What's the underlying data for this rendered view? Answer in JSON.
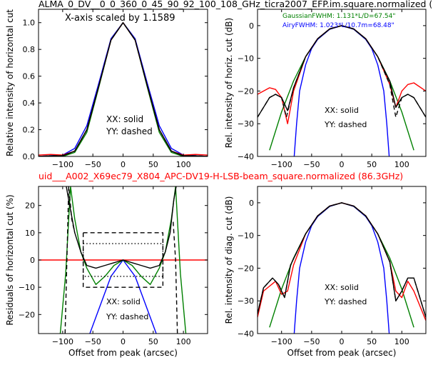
{
  "figure": {
    "title_top": "ALMA_0_DV__0_0_360_0_45_90_92_100_108_GHz_ticra2007_EFP.im.square.normalized (",
    "title_mid": "uid___A002_X69ec79_X804_APC-DV19-H-LSB-beam_square.normalized (86.3GHz)",
    "colors": {
      "black": "#000000",
      "red": "#ff0000",
      "green": "#008000",
      "blue": "#0000ff",
      "mid_title": "#ff0000"
    }
  },
  "chart_data": [
    {
      "id": "tl",
      "type": "line",
      "title": "",
      "xlabel": "",
      "ylabel": "Relative intensity of horizontal cut",
      "xlim": [
        -140,
        140
      ],
      "ylim": [
        0,
        1.1
      ],
      "xticks": [
        -100,
        -50,
        0,
        50,
        100
      ],
      "yticks": [
        0.0,
        0.2,
        0.4,
        0.6,
        0.8,
        1.0
      ],
      "ytick_labels": [
        "0.0",
        "0.2",
        "0.4",
        "0.6",
        "0.8",
        "1.0"
      ],
      "annotations": [
        "X-axis scaled by 1.1589",
        "XX: solid",
        "YY: dashed"
      ],
      "series": [
        {
          "color": "#0000ff",
          "style": "solid",
          "x": [
            -140,
            -100,
            -80,
            -60,
            -40,
            -20,
            0,
            20,
            40,
            60,
            80,
            100,
            140
          ],
          "y": [
            0,
            0.01,
            0.06,
            0.23,
            0.55,
            0.88,
            1.0,
            0.88,
            0.55,
            0.23,
            0.06,
            0.01,
            0
          ]
        },
        {
          "color": "#008000",
          "style": "solid",
          "x": [
            -140,
            -100,
            -80,
            -60,
            -40,
            -20,
            0,
            20,
            40,
            60,
            80,
            100,
            140
          ],
          "y": [
            0,
            0,
            0.03,
            0.18,
            0.52,
            0.87,
            1.0,
            0.87,
            0.52,
            0.18,
            0.03,
            0,
            0
          ]
        },
        {
          "color": "#ff0000",
          "style": "solid",
          "x": [
            -140,
            -120,
            -100,
            -80,
            -60,
            -40,
            -20,
            0,
            20,
            40,
            60,
            80,
            100,
            120,
            140
          ],
          "y": [
            0.01,
            0.015,
            0.01,
            0.04,
            0.2,
            0.53,
            0.87,
            1.0,
            0.87,
            0.53,
            0.2,
            0.04,
            0.01,
            0.015,
            0.01
          ]
        },
        {
          "color": "#000000",
          "style": "solid",
          "x": [
            -140,
            -120,
            -100,
            -80,
            -60,
            -40,
            -20,
            0,
            20,
            40,
            60,
            80,
            100,
            120,
            140
          ],
          "y": [
            0,
            0.005,
            0.005,
            0.04,
            0.2,
            0.53,
            0.87,
            1.0,
            0.87,
            0.53,
            0.2,
            0.04,
            0.005,
            0.005,
            0
          ]
        },
        {
          "color": "#000000",
          "style": "dashed",
          "x": [
            -140,
            -120,
            -100,
            -80,
            -60,
            -40,
            -20,
            0,
            20,
            40,
            60,
            80,
            100,
            120,
            140
          ],
          "y": [
            0,
            0.005,
            0.005,
            0.04,
            0.2,
            0.53,
            0.87,
            1.0,
            0.87,
            0.53,
            0.2,
            0.04,
            0.005,
            0.005,
            0
          ]
        }
      ]
    },
    {
      "id": "tr",
      "type": "line",
      "title": "",
      "xlabel": "",
      "ylabel": "Rel. intensity of horiz. cut (dB)",
      "xlim": [
        -140,
        140
      ],
      "ylim": [
        -40,
        5
      ],
      "xticks": [
        -100,
        -50,
        0,
        50,
        100
      ],
      "yticks": [
        0,
        -10,
        -20,
        -30,
        -40
      ],
      "annotations": [
        "GaussianFWHM: 1.131*L/D=67.54\"",
        "AiryFWHM: 1.023*L/10.7m=68.48\"",
        "XX: solid",
        "YY: dashed"
      ],
      "series": [
        {
          "color": "#008000",
          "style": "solid",
          "x": [
            -120,
            -100,
            -80,
            -60,
            -40,
            -20,
            0,
            20,
            40,
            60,
            80,
            100,
            120
          ],
          "y": [
            -38.1,
            -26.4,
            -16.9,
            -9.5,
            -4.2,
            -1.1,
            0,
            -1.1,
            -4.2,
            -9.5,
            -16.9,
            -26.4,
            -38.1
          ]
        },
        {
          "color": "#0000ff",
          "style": "solid",
          "x": [
            -79,
            -75,
            -70,
            -60,
            -50,
            -40,
            -20,
            0,
            20,
            40,
            50,
            60,
            70,
            75,
            79
          ],
          "y": [
            -40,
            -30,
            -20,
            -12,
            -7,
            -4.2,
            -1.1,
            0,
            -1.1,
            -4.2,
            -7,
            -12,
            -20,
            -30,
            -40
          ]
        },
        {
          "color": "#ff0000",
          "style": "solid",
          "x": [
            -140,
            -120,
            -110,
            -100,
            -90,
            -80,
            -60,
            -40,
            -20,
            0,
            20,
            40,
            60,
            80,
            90,
            100,
            110,
            120,
            140
          ],
          "y": [
            -21,
            -19,
            -19.5,
            -22,
            -30,
            -20,
            -9.5,
            -4,
            -1,
            0,
            -1,
            -4,
            -9.5,
            -18,
            -25,
            -20,
            -18,
            -17.5,
            -20
          ]
        },
        {
          "color": "#000000",
          "style": "solid",
          "x": [
            -140,
            -120,
            -110,
            -100,
            -90,
            -80,
            -60,
            -40,
            -20,
            0,
            20,
            40,
            60,
            80,
            90,
            100,
            110,
            120,
            140
          ],
          "y": [
            -28,
            -22,
            -21,
            -22,
            -26,
            -19,
            -9.5,
            -4,
            -1,
            0,
            -1,
            -4,
            -9.5,
            -17,
            -25,
            -22,
            -21,
            -22,
            -28
          ]
        },
        {
          "color": "#000000",
          "style": "dashed",
          "x": [
            -140,
            -120,
            -110,
            -100,
            -92,
            -80,
            -60,
            -40,
            -20,
            0,
            20,
            40,
            60,
            80,
            90,
            95,
            100,
            110,
            120,
            140
          ],
          "y": [
            -28,
            -22,
            -21,
            -22,
            -28,
            -19,
            -9.5,
            -4,
            -1,
            0,
            -1,
            -4,
            -9.5,
            -18,
            -28,
            -25,
            -22,
            -21,
            -22,
            -28
          ]
        }
      ]
    },
    {
      "id": "bl",
      "type": "line",
      "title": "",
      "xlabel": "Offset from peak (arcsec)",
      "ylabel": "Residuals of horizontal cut (%)",
      "xlim": [
        -140,
        140
      ],
      "ylim": [
        -27,
        27
      ],
      "xticks": [
        -100,
        -50,
        0,
        50,
        100
      ],
      "yticks": [
        20,
        10,
        0,
        -10,
        -20
      ],
      "annotations": [
        "XX: solid",
        "YY: dashed"
      ],
      "series": [
        {
          "color": "#ff0000",
          "style": "solid",
          "x": [
            -140,
            140
          ],
          "y": [
            0,
            0
          ]
        },
        {
          "color": "#0000ff",
          "style": "solid",
          "x": [
            -55,
            -40,
            -20,
            0,
            20,
            40,
            55
          ],
          "y": [
            -27,
            -18,
            -6,
            0,
            -6,
            -18,
            -27
          ]
        },
        {
          "color": "#008000",
          "style": "solid",
          "x": [
            -104,
            -95,
            -87,
            -80,
            -70,
            -60,
            -45,
            -30,
            -15,
            0,
            15,
            30,
            45,
            60,
            70,
            80,
            87,
            95,
            104
          ],
          "y": [
            -27,
            -5,
            27,
            15,
            3,
            -3,
            -9,
            -6,
            -2,
            0,
            -2,
            -6,
            -9,
            -3,
            3,
            15,
            27,
            -5,
            -27
          ]
        },
        {
          "color": "#000000",
          "style": "solid",
          "x": [
            -94,
            -90,
            -80,
            -70,
            -60,
            -45,
            -30,
            -15,
            0,
            15,
            30,
            45,
            60,
            70,
            78,
            84,
            88
          ],
          "y": [
            27,
            22,
            10,
            3,
            -2,
            -3,
            -2,
            -1,
            0,
            -1,
            -2,
            -3,
            -2,
            3,
            10,
            22,
            27
          ]
        },
        {
          "color": "#000000",
          "style": "dashed",
          "x": [
            -96,
            -93,
            -90,
            -85,
            -80
          ],
          "y": [
            -27,
            0,
            27,
            15,
            10
          ]
        },
        {
          "color": "#000000",
          "style": "dashed",
          "x": [
            -66,
            66,
            66,
            -66,
            -66
          ],
          "y": [
            10,
            10,
            -10,
            -10,
            10
          ]
        },
        {
          "color": "#000000",
          "style": "dotted",
          "x": [
            -66,
            66,
            66,
            -66,
            -66
          ],
          "y": [
            6,
            6,
            -6,
            -6,
            6
          ]
        },
        {
          "color": "#000000",
          "style": "dashed",
          "x": [
            83,
            87,
            90
          ],
          "y": [
            14,
            0,
            -27
          ]
        }
      ]
    },
    {
      "id": "br",
      "type": "line",
      "title": "",
      "xlabel": "Offset from peak (arcsec)",
      "ylabel": "Rel. intensity of diag. cut (dB)",
      "xlim": [
        -140,
        140
      ],
      "ylim": [
        -40,
        5
      ],
      "xticks": [
        -100,
        -50,
        0,
        50,
        100
      ],
      "yticks": [
        0,
        -10,
        -20,
        -30,
        -40
      ],
      "annotations": [
        "XX: solid",
        "YY: dashed"
      ],
      "series": [
        {
          "color": "#008000",
          "style": "solid",
          "x": [
            -120,
            -100,
            -80,
            -60,
            -40,
            -20,
            0,
            20,
            40,
            60,
            80,
            100,
            120
          ],
          "y": [
            -38.1,
            -26.4,
            -16.9,
            -9.5,
            -4.2,
            -1.1,
            0,
            -1.1,
            -4.2,
            -9.5,
            -16.9,
            -26.4,
            -38.1
          ]
        },
        {
          "color": "#0000ff",
          "style": "solid",
          "x": [
            -79,
            -75,
            -70,
            -60,
            -50,
            -40,
            -20,
            0,
            20,
            40,
            50,
            60,
            70,
            75,
            79
          ],
          "y": [
            -40,
            -30,
            -20,
            -12,
            -7,
            -4.2,
            -1.1,
            0,
            -1.1,
            -4.2,
            -7,
            -12,
            -20,
            -30,
            -40
          ]
        },
        {
          "color": "#ff0000",
          "style": "solid",
          "x": [
            -140,
            -130,
            -110,
            -100,
            -90,
            -80,
            -60,
            -40,
            -20,
            0,
            20,
            40,
            60,
            80,
            90,
            100,
            110,
            120,
            140
          ],
          "y": [
            -35,
            -27,
            -24,
            -28,
            -27,
            -19,
            -9.5,
            -4,
            -1,
            0,
            -1,
            -4,
            -9.5,
            -18,
            -27,
            -29,
            -24,
            -27,
            -36
          ]
        },
        {
          "color": "#000000",
          "style": "solid",
          "x": [
            -140,
            -130,
            -115,
            -105,
            -95,
            -85,
            -60,
            -40,
            -20,
            0,
            20,
            40,
            60,
            80,
            90,
            100,
            110,
            120,
            140
          ],
          "y": [
            -34,
            -26,
            -23,
            -25,
            -29,
            -19,
            -9.5,
            -4,
            -1,
            0,
            -1,
            -4,
            -9.5,
            -18,
            -30,
            -27,
            -23,
            -23,
            -35
          ]
        },
        {
          "color": "#000000",
          "style": "dashed",
          "x": [
            -140,
            -130,
            -115,
            -105,
            -95,
            -85,
            -60,
            -40,
            -20,
            0,
            20,
            40,
            60,
            80,
            90,
            100,
            110,
            120,
            140
          ],
          "y": [
            -34,
            -26,
            -23,
            -25,
            -29,
            -19,
            -9.5,
            -4,
            -1,
            0,
            -1,
            -4,
            -9.5,
            -18,
            -30,
            -27,
            -23,
            -23,
            -35
          ]
        }
      ]
    }
  ]
}
